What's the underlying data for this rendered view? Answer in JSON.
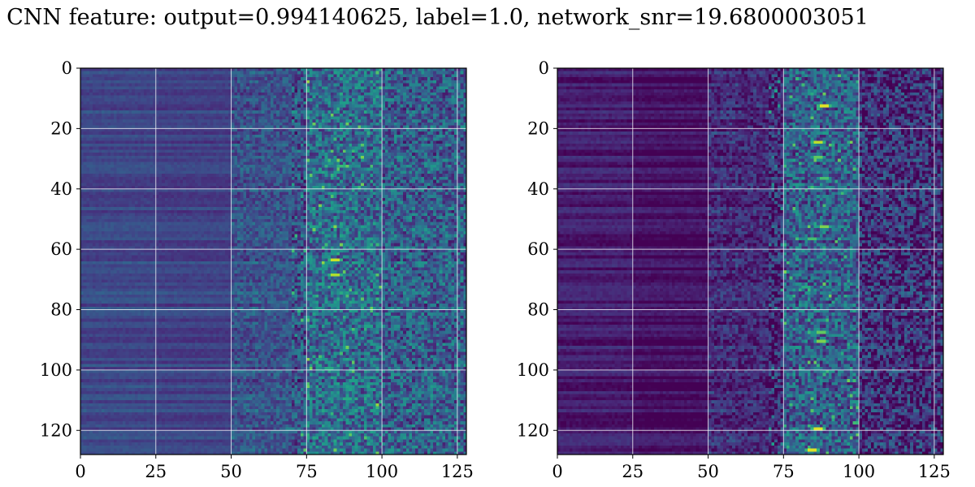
{
  "figure": {
    "title": "G CNN feature: output=0.994140625, label=1.0, network_snr=19.6800003051"
  },
  "colormap": [
    "#440154",
    "#482878",
    "#3e4989",
    "#31688e",
    "#26828e",
    "#1f9e89",
    "#35b779",
    "#6ece58",
    "#b5de2b",
    "#fde725"
  ],
  "chart_data": [
    {
      "type": "heatmap",
      "title": "",
      "xlabel": "",
      "ylabel": "",
      "rows": 128,
      "cols": 128,
      "xlim": [
        0,
        128
      ],
      "ylim": [
        128,
        0
      ],
      "xticks": [
        0,
        25,
        50,
        75,
        100,
        125
      ],
      "yticks": [
        0,
        20,
        40,
        60,
        80,
        100,
        120
      ],
      "grid": true,
      "bands": [
        {
          "col_start": 0,
          "col_end": 25,
          "level": 0.22
        },
        {
          "col_start": 25,
          "col_end": 50,
          "level": 0.2
        },
        {
          "col_start": 50,
          "col_end": 75,
          "level": 0.26
        },
        {
          "col_start": 75,
          "col_end": 100,
          "level": 0.35
        },
        {
          "col_start": 100,
          "col_end": 128,
          "level": 0.3
        }
      ],
      "hotspots": [
        {
          "row": 63,
          "col": 84,
          "value": 0.92
        },
        {
          "row": 68,
          "col": 84,
          "value": 0.88
        },
        {
          "row": 11,
          "col": 87,
          "value": 0.55
        },
        {
          "row": 16,
          "col": 84,
          "value": 0.5
        },
        {
          "row": 41,
          "col": 83,
          "value": 0.55
        },
        {
          "row": 99,
          "col": 82,
          "value": 0.6
        },
        {
          "row": 103,
          "col": 90,
          "value": 0.55
        },
        {
          "row": 109,
          "col": 88,
          "value": 0.6
        },
        {
          "row": 119,
          "col": 69,
          "value": 0.45
        }
      ]
    },
    {
      "type": "heatmap",
      "title": "",
      "xlabel": "",
      "ylabel": "",
      "rows": 128,
      "cols": 128,
      "xlim": [
        0,
        128
      ],
      "ylim": [
        128,
        0
      ],
      "xticks": [
        0,
        25,
        50,
        75,
        100,
        125
      ],
      "yticks": [
        0,
        20,
        40,
        60,
        80,
        100,
        120
      ],
      "grid": true,
      "bands": [
        {
          "col_start": 0,
          "col_end": 25,
          "level": 0.08
        },
        {
          "col_start": 25,
          "col_end": 50,
          "level": 0.04
        },
        {
          "col_start": 50,
          "col_end": 75,
          "level": 0.12
        },
        {
          "col_start": 75,
          "col_end": 100,
          "level": 0.3
        },
        {
          "col_start": 100,
          "col_end": 128,
          "level": 0.14
        }
      ],
      "hotspots": [
        {
          "row": 12,
          "col": 88,
          "value": 0.95
        },
        {
          "row": 24,
          "col": 86,
          "value": 0.9
        },
        {
          "row": 29,
          "col": 86,
          "value": 0.75
        },
        {
          "row": 36,
          "col": 88,
          "value": 0.7
        },
        {
          "row": 52,
          "col": 88,
          "value": 0.8
        },
        {
          "row": 56,
          "col": 84,
          "value": 0.7
        },
        {
          "row": 72,
          "col": 82,
          "value": 0.6
        },
        {
          "row": 87,
          "col": 87,
          "value": 0.75
        },
        {
          "row": 90,
          "col": 87,
          "value": 0.8
        },
        {
          "row": 119,
          "col": 86,
          "value": 0.95
        },
        {
          "row": 126,
          "col": 84,
          "value": 0.95
        }
      ]
    }
  ]
}
